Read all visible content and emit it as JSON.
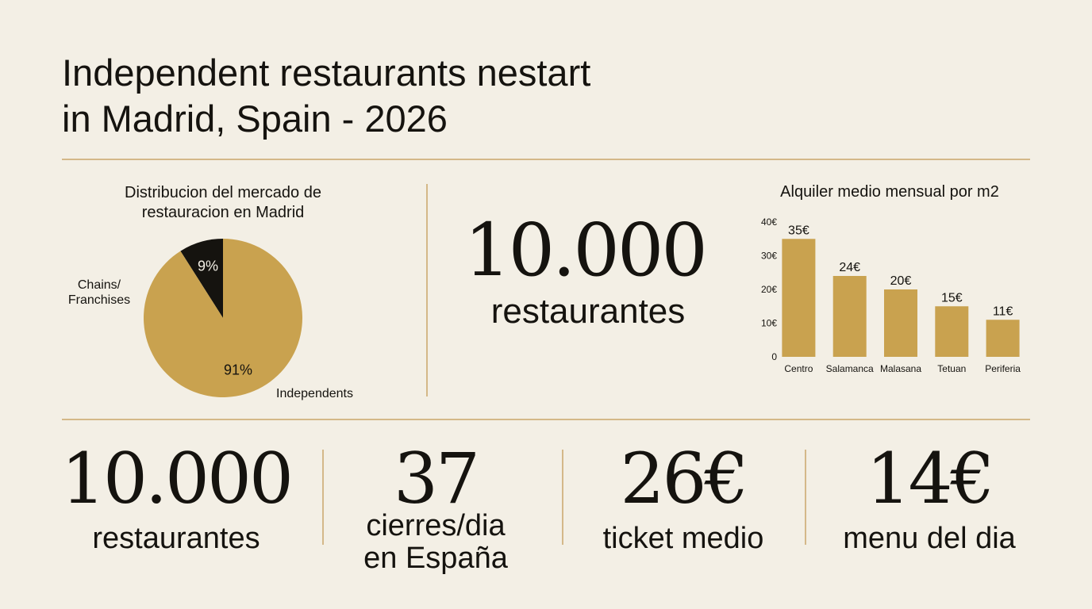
{
  "title_lines": [
    "Independent restaurants nestart",
    "in Madrid, Spain - 2026"
  ],
  "chart_data": [
    {
      "type": "pie",
      "title": "Distribucion del mercado de restauracion en Madrid",
      "categories": [
        "Chains/\nFranchises",
        "Independents"
      ],
      "values": [
        9,
        91
      ],
      "value_labels": [
        "9%",
        "91%"
      ],
      "colors": [
        "#15130f",
        "#c9a24f"
      ]
    },
    {
      "type": "bar",
      "title": "Alquiler medio mensual por m2",
      "categories": [
        "Centro",
        "Salamanca",
        "Malasana",
        "Tetuan",
        "Periferia"
      ],
      "values": [
        35,
        24,
        20,
        15,
        11
      ],
      "value_labels": [
        "35€",
        "24€",
        "20€",
        "15€",
        "11€"
      ],
      "color": "#c9a24f",
      "ylim": [
        0,
        40
      ],
      "yticks": [
        0,
        {
          "value": 10,
          "label": "10€"
        },
        {
          "value": 20,
          "label": "20€"
        },
        {
          "value": 30,
          "label": "30€"
        },
        {
          "value": 40,
          "label": "40€"
        }
      ]
    }
  ],
  "headline": {
    "value": "10.000",
    "label": "restaurantes"
  },
  "stats": [
    {
      "value": "10.000",
      "label": [
        "restaurantes"
      ]
    },
    {
      "value": "37",
      "label": [
        "cierres/dia",
        "en España"
      ]
    },
    {
      "value": "26€",
      "label": [
        "ticket medio"
      ]
    },
    {
      "value": "14€",
      "label": [
        "menu del dia"
      ]
    }
  ]
}
